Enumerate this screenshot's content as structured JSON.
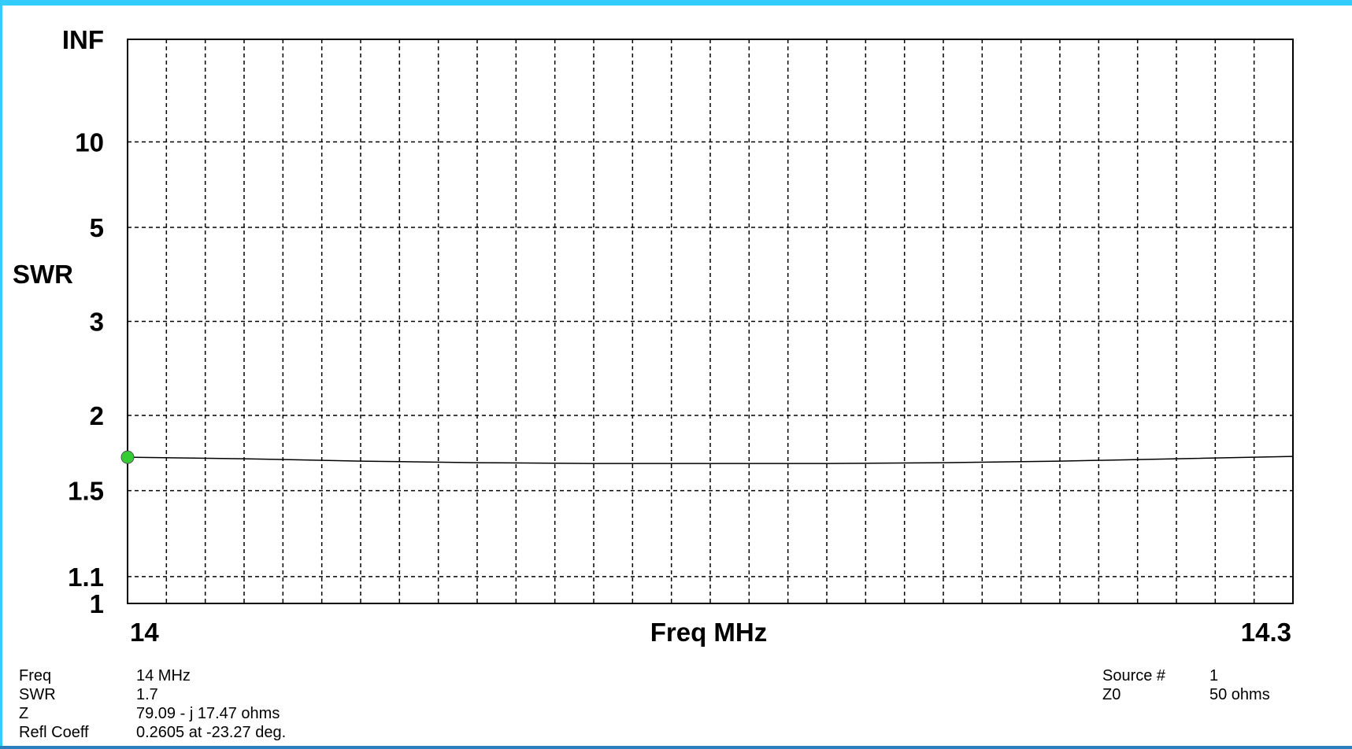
{
  "chart_data": {
    "type": "line",
    "ylabel": "SWR",
    "xlabel": "Freq MHz",
    "xlim": [
      14,
      14.3
    ],
    "x_tick_labels": [
      "14",
      "14.3"
    ],
    "y_scale": "reflection-coefficient (SWR)",
    "y_ticks": [
      {
        "label": "INF",
        "value": null
      },
      {
        "label": "10",
        "value": 10
      },
      {
        "label": "5",
        "value": 5
      },
      {
        "label": "3",
        "value": 3
      },
      {
        "label": "2",
        "value": 2
      },
      {
        "label": "1.5",
        "value": 1.5
      },
      {
        "label": "1.1",
        "value": 1.1
      },
      {
        "label": "1",
        "value": 1
      }
    ],
    "grid": true,
    "series": [
      {
        "color": "#000000",
        "x": [
          14.0,
          14.03,
          14.06,
          14.09,
          14.12,
          14.15,
          14.18,
          14.21,
          14.24,
          14.27,
          14.3
        ],
        "y": [
          1.7,
          1.69,
          1.675,
          1.665,
          1.66,
          1.66,
          1.66,
          1.665,
          1.675,
          1.69,
          1.705
        ]
      }
    ],
    "marker": {
      "x": 14.0,
      "y": 1.7,
      "color": "#33cc33"
    }
  },
  "readout": {
    "labels": [
      "Freq",
      "SWR",
      "Z",
      "Refl Coeff"
    ],
    "values": [
      "14 MHz",
      "1.7",
      "79.09 - j 17.47 ohms",
      "0.2605 at -23.27 deg."
    ],
    "right_labels": [
      "Source #",
      "Z0"
    ],
    "right_values": [
      "1",
      "50 ohms"
    ]
  },
  "colors": {
    "frame": "#33ccff",
    "grid": "#000000",
    "curve": "#000000",
    "marker": "#33cc33"
  }
}
